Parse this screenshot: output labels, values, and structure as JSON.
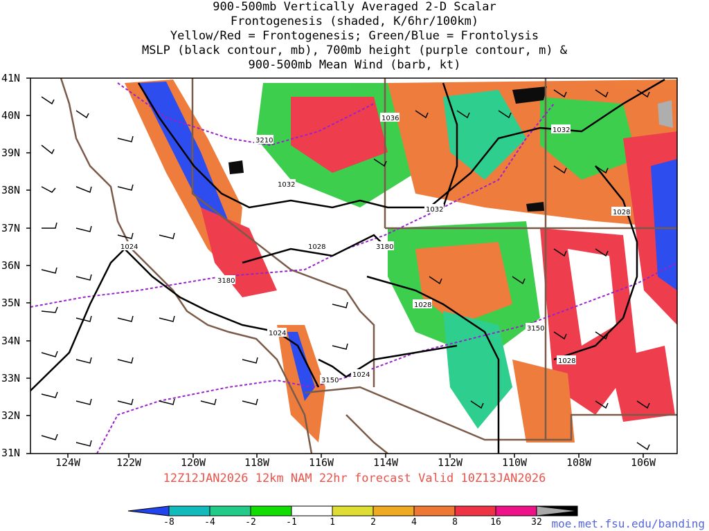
{
  "title_lines": [
    "900-500mb Vertically Averaged 2-D Scalar",
    "Frontogenesis (shaded, K/6hr/100km)",
    "Yellow/Red = Frontogenesis;  Green/Blue = Frontolysis",
    "MSLP (black contour, mb), 700mb height (purple contour, m) &",
    "900-500mb Mean Wind (barb, kt)"
  ],
  "lat_labels": [
    "41N",
    "40N",
    "39N",
    "38N",
    "37N",
    "36N",
    "35N",
    "34N",
    "33N",
    "32N",
    "31N"
  ],
  "lon_labels": [
    "124W",
    "122W",
    "120W",
    "118W",
    "116W",
    "114W",
    "112W",
    "110W",
    "108W",
    "106W"
  ],
  "valid_text": "12Z12JAN2026 12km NAM 22hr forecast Valid 10Z13JAN2026",
  "colorbar": {
    "labels": [
      "-8",
      "-4",
      "-2",
      "-1",
      "1",
      "2",
      "4",
      "8",
      "16",
      "32"
    ],
    "colors": [
      "#2244ee",
      "#11bbbb",
      "#22cc88",
      "#33cc44",
      "#11dd00",
      "#ffffff",
      "#dddd33",
      "#eeaa22",
      "#ee7733",
      "#ee3344",
      "#ee1188",
      "#000000",
      "#aaaaaa"
    ]
  },
  "mslp_labels": [
    "1036",
    "1032",
    "1032",
    "1032",
    "1028",
    "1028",
    "1028",
    "1024",
    "1024",
    "1024",
    "1028"
  ],
  "height_labels": [
    "3210",
    "3180",
    "3150",
    "3150",
    "3180"
  ],
  "credit": "moe.met.fsu.edu/banding"
}
